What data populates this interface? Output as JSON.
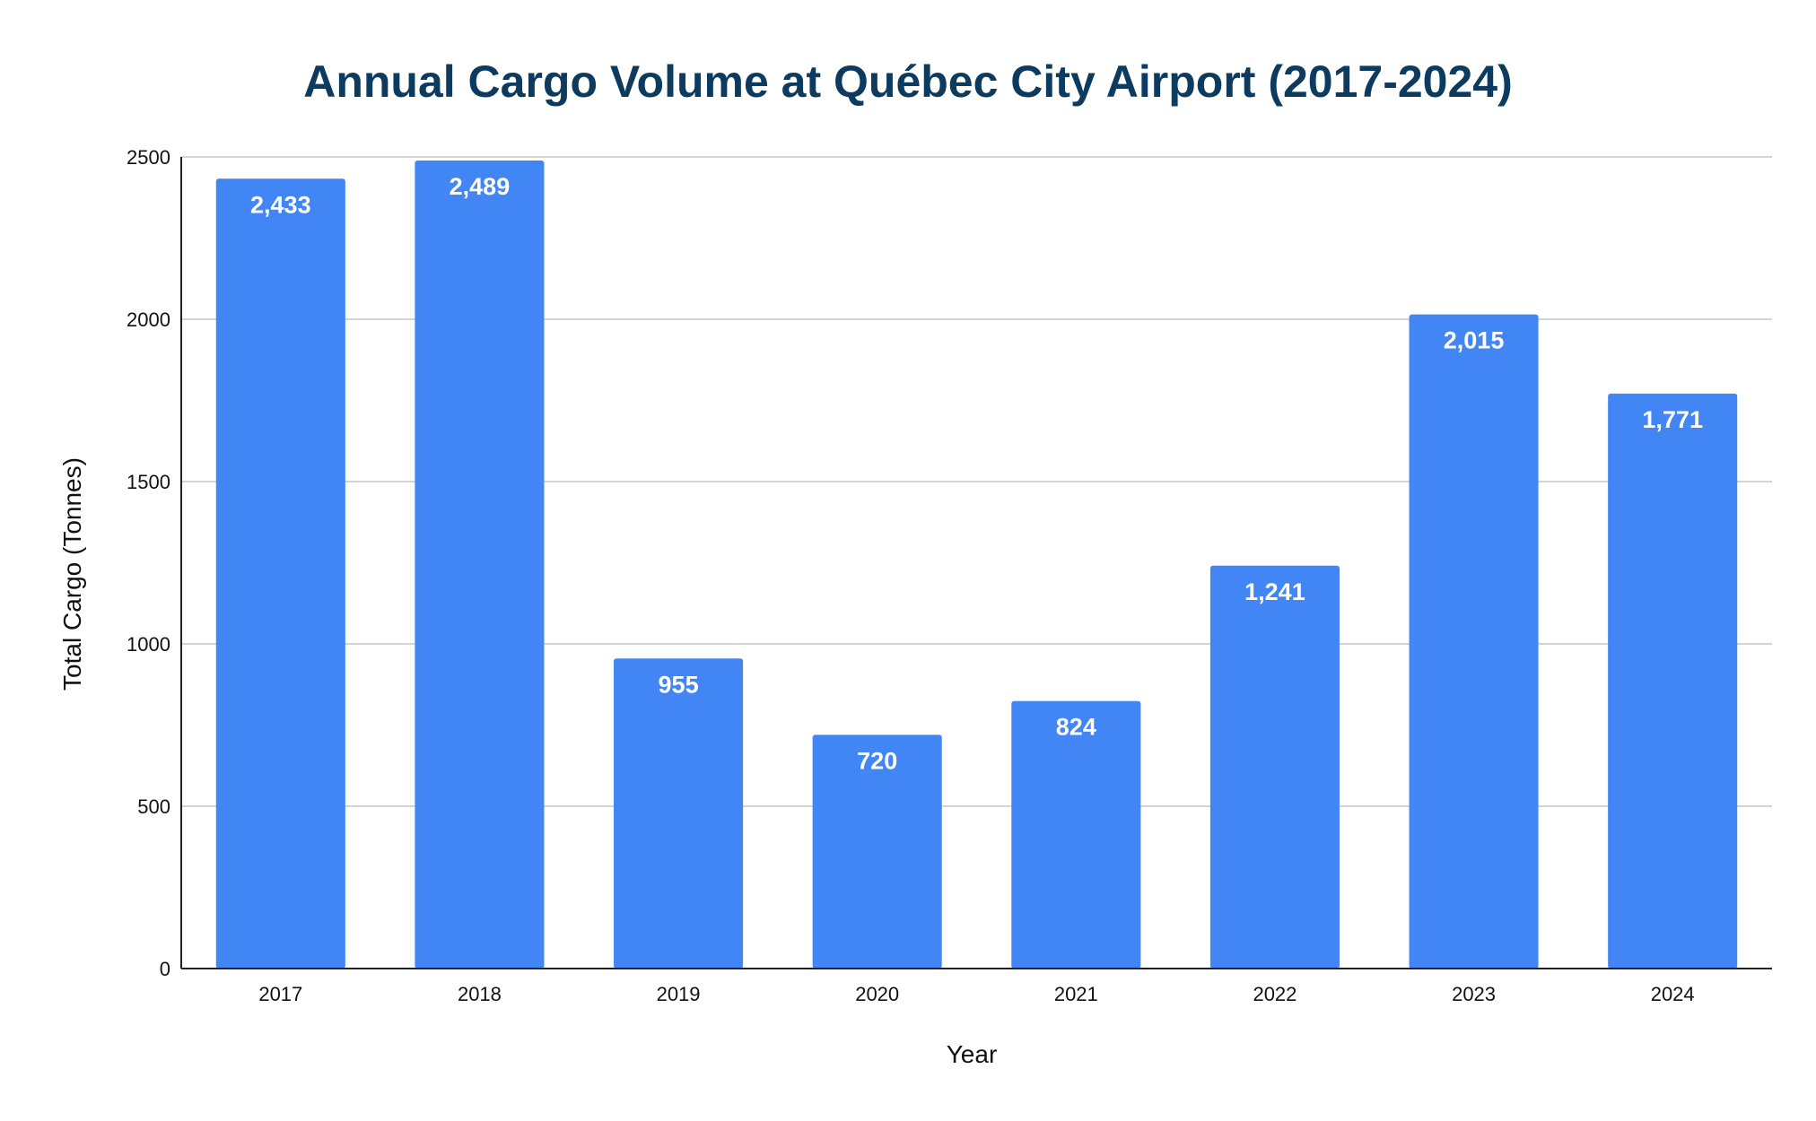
{
  "chart_data": {
    "type": "bar",
    "title": "Annual Cargo Volume at Québec City Airport (2017-2024)",
    "xlabel": "Year",
    "ylabel": "Total Cargo (Tonnes)",
    "categories": [
      "2017",
      "2018",
      "2019",
      "2020",
      "2021",
      "2022",
      "2023",
      "2024"
    ],
    "values": [
      2433,
      2489,
      955,
      720,
      824,
      1241,
      2015,
      1771
    ],
    "data_labels": [
      "2,433",
      "2,489",
      "955",
      "720",
      "824",
      "1,241",
      "2,015",
      "1,771"
    ],
    "ylim": [
      0,
      2500
    ],
    "yticks": [
      0,
      500,
      1000,
      1500,
      2000,
      2500
    ],
    "ytick_labels": [
      "0",
      "500",
      "1000",
      "1500",
      "2000",
      "2500"
    ],
    "grid": true,
    "legend": "none",
    "colors": {
      "bar": "#4285f4",
      "title": "#0d3a5f"
    }
  }
}
